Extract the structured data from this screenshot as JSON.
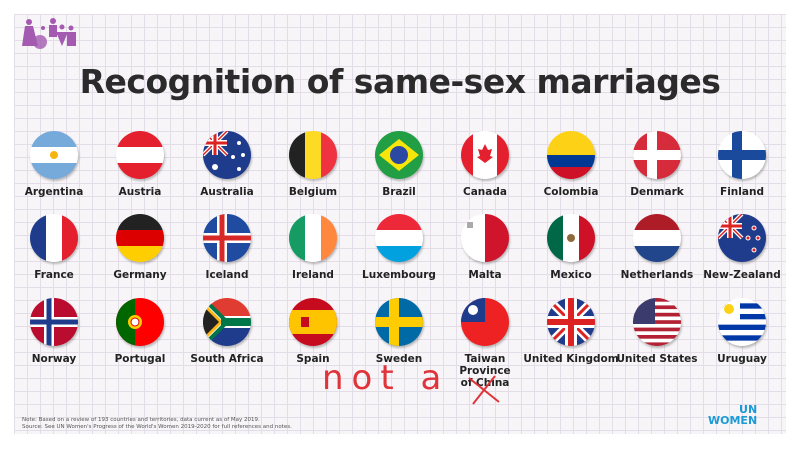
{
  "title": "Recognition of same-sex marriages",
  "countries": [
    {
      "name": "Argentina",
      "flag": "argentina-flag-icon"
    },
    {
      "name": "Austria",
      "flag": "austria-flag-icon"
    },
    {
      "name": "Australia",
      "flag": "australia-flag-icon"
    },
    {
      "name": "Belgium",
      "flag": "belgium-flag-icon"
    },
    {
      "name": "Brazil",
      "flag": "brazil-flag-icon"
    },
    {
      "name": "Canada",
      "flag": "canada-flag-icon"
    },
    {
      "name": "Colombia",
      "flag": "colombia-flag-icon"
    },
    {
      "name": "Denmark",
      "flag": "denmark-flag-icon"
    },
    {
      "name": "Finland",
      "flag": "finland-flag-icon"
    },
    {
      "name": "France",
      "flag": "france-flag-icon"
    },
    {
      "name": "Germany",
      "flag": "germany-flag-icon"
    },
    {
      "name": "Iceland",
      "flag": "iceland-flag-icon"
    },
    {
      "name": "Ireland",
      "flag": "ireland-flag-icon"
    },
    {
      "name": "Luxembourg",
      "flag": "luxembourg-flag-icon"
    },
    {
      "name": "Malta",
      "flag": "malta-flag-icon"
    },
    {
      "name": "Mexico",
      "flag": "mexico-flag-icon"
    },
    {
      "name": "Netherlands",
      "flag": "netherlands-flag-icon"
    },
    {
      "name": "New-Zealand",
      "flag": "new-zealand-flag-icon"
    },
    {
      "name": "Norway",
      "flag": "norway-flag-icon"
    },
    {
      "name": "Portugal",
      "flag": "portugal-flag-icon"
    },
    {
      "name": "South Africa",
      "flag": "south-africa-flag-icon"
    },
    {
      "name": "Spain",
      "flag": "spain-flag-icon"
    },
    {
      "name": "Sweden",
      "flag": "sweden-flag-icon"
    },
    {
      "name": "Taiwan Province of China",
      "flag": "taiwan-flag-icon"
    },
    {
      "name": "United Kingdom",
      "flag": "uk-flag-icon"
    },
    {
      "name": "United States",
      "flag": "us-flag-icon"
    },
    {
      "name": "Uruguay",
      "flag": "uruguay-flag-icon"
    }
  ],
  "note": {
    "line1": "Note: Based on a review of 193 countries and territories, data current as of May 2019.",
    "line2": "Source: See UN Women's Progress of the World's Women 2019-2020 for full references and notes."
  },
  "brand": {
    "line1": "UN",
    "line2": "WOMEN",
    "color": "#1a9ad6"
  },
  "handwriting": "not a",
  "colors": {
    "logo": "#a45ab0",
    "handwriting": "#e0333a"
  }
}
